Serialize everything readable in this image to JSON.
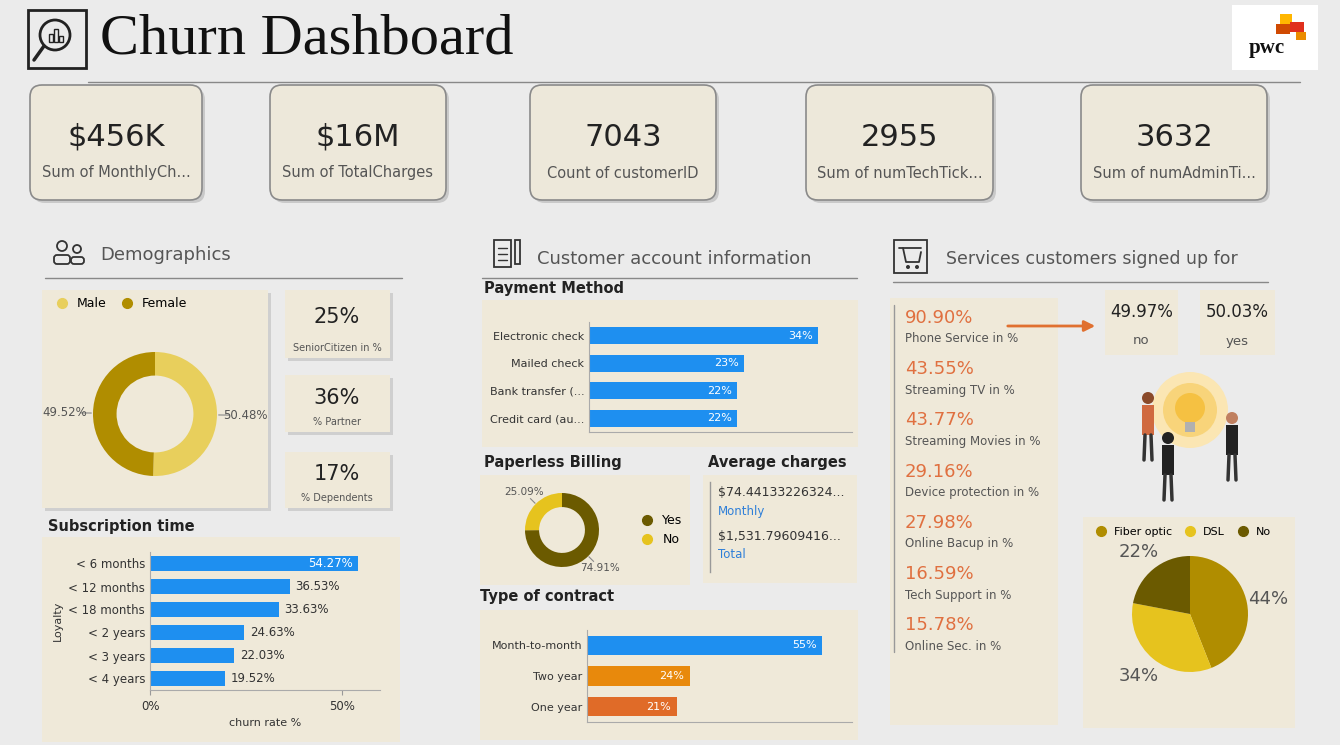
{
  "header": {
    "title": "Churn Dashboard",
    "logo": "pwc"
  },
  "kpis": [
    {
      "value": "$456K",
      "label": "Sum of MonthlyCh..."
    },
    {
      "value": "$16M",
      "label": "Sum of TotalCharges"
    },
    {
      "value": "7043",
      "label": "Count of customerID"
    },
    {
      "value": "2955",
      "label": "Sum of numTechTick..."
    },
    {
      "value": "3632",
      "label": "Sum of numAdminTi..."
    }
  ],
  "sections": {
    "demographics": "Demographics",
    "account": "Customer account information",
    "services": "Services customers signed up for"
  },
  "demographic_cards": [
    {
      "value": "25%",
      "label": "SeniorCitizen in %"
    },
    {
      "value": "36%",
      "label": "% Partner"
    },
    {
      "value": "17%",
      "label": "% Dependents"
    }
  ],
  "average_charges": {
    "title": "Average charges",
    "items": [
      {
        "value": "$74.44133226324...",
        "label": "Monthly"
      },
      {
        "value": "$1,531.79609416...",
        "label": "Total"
      }
    ]
  },
  "services": {
    "items": [
      {
        "value": "90.90%",
        "label": "Phone Service in %"
      },
      {
        "value": "43.55%",
        "label": "Streaming TV in %"
      },
      {
        "value": "43.77%",
        "label": "Streaming Movies in %"
      },
      {
        "value": "29.16%",
        "label": "Device protection in %"
      },
      {
        "value": "27.98%",
        "label": "Online Bacup in %"
      },
      {
        "value": "16.59%",
        "label": "Tech Support in %"
      },
      {
        "value": "15.78%",
        "label": "Online Sec. in %"
      }
    ],
    "phone_split": [
      {
        "value": "49.97%",
        "label": "no"
      },
      {
        "value": "50.03%",
        "label": "yes"
      }
    ]
  },
  "chart_data": [
    {
      "type": "donut",
      "categories": [
        "Male",
        "Female"
      ],
      "values": [
        50.48,
        49.52
      ],
      "value_labels": [
        "50.48%",
        "49.52%"
      ],
      "colors": [
        "#e8cf5c",
        "#b08d00"
      ],
      "data_labels": true,
      "legend": "upper left"
    },
    {
      "type": "bar",
      "title": "Subscription time",
      "orientation": "horizontal",
      "categories": [
        "< 6 months",
        "< 12 months",
        "< 18 months",
        "< 2 years",
        "< 3 years",
        "< 4 years"
      ],
      "values": [
        54.27,
        36.53,
        33.63,
        24.63,
        22.03,
        19.52
      ],
      "value_labels": [
        "54.27%",
        "36.53%",
        "33.63%",
        "24.63%",
        "22.03%",
        "19.52%"
      ],
      "color": "#1e8ff0",
      "xlabel": "churn rate %",
      "ylabel": "Loyalty",
      "xlim": [
        0,
        60
      ],
      "xticks": [
        {
          "value": 0,
          "label": "0%"
        },
        {
          "value": 50,
          "label": "50%"
        }
      ],
      "data_labels": true
    },
    {
      "type": "bar",
      "title": "Payment Method",
      "orientation": "horizontal",
      "categories": [
        "Electronic check",
        "Mailed check",
        "Bank transfer (...",
        "Credit card (au..."
      ],
      "values": [
        34,
        23,
        22,
        22
      ],
      "value_labels": [
        "34%",
        "23%",
        "22%",
        "22%"
      ],
      "color": "#1e8ff0",
      "xlim": [
        0,
        39
      ],
      "tick_labels": "y",
      "data_labels": true
    },
    {
      "type": "donut",
      "title": "Paperless Billing",
      "categories": [
        "Yes",
        "No"
      ],
      "values": [
        74.91,
        25.09
      ],
      "value_labels": [
        "74.91%",
        "25.09%"
      ],
      "colors": [
        "#6b5a00",
        "#e6c31e"
      ],
      "data_labels": true,
      "legend": "center right"
    },
    {
      "type": "bar",
      "title": "Type of contract",
      "orientation": "horizontal",
      "categories": [
        "Month-to-month",
        "Two year",
        "One year"
      ],
      "values": [
        55,
        24,
        21
      ],
      "value_labels": [
        "55%",
        "24%",
        "21%"
      ],
      "colors": [
        "#1e8ff0",
        "#e8890c",
        "#e06b28"
      ],
      "xlim": [
        0,
        62
      ],
      "tick_labels": "y",
      "data_labels": true
    },
    {
      "type": "pie",
      "categories": [
        "Fiber optic",
        "DSL",
        "No"
      ],
      "values": [
        44,
        34,
        22
      ],
      "value_labels": [
        "44%",
        "34%",
        "22%"
      ],
      "colors": [
        "#b08d00",
        "#e6c31e",
        "#6b5a00"
      ],
      "data_labels": true,
      "legend": "upper left"
    }
  ]
}
